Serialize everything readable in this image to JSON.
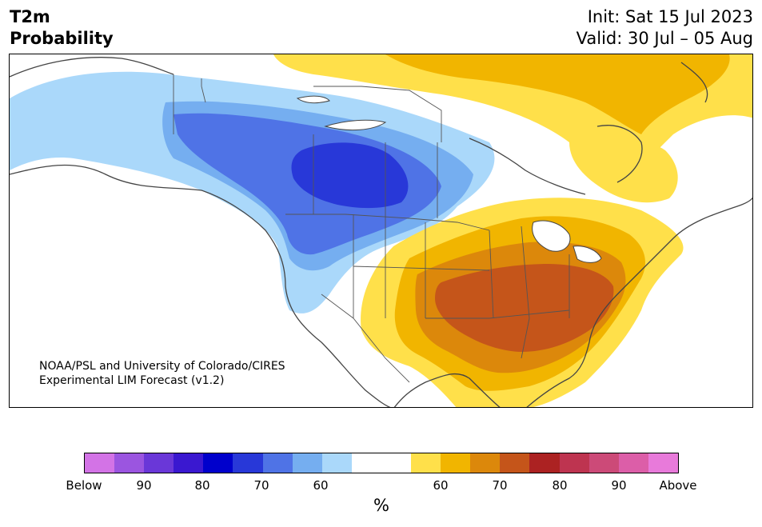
{
  "header": {
    "title_line1": "T2m",
    "title_line2": "Probability",
    "init": "Init: Sat 15 Jul 2023",
    "valid": "Valid: 30 Jul – 05 Aug"
  },
  "credit": {
    "line1": "NOAA/PSL and University of Colorado/CIRES",
    "line2": "Experimental LIM Forecast (v1.2)"
  },
  "colorbar": {
    "colors": [
      "#d373e6",
      "#9b55e0",
      "#6a37d8",
      "#3a18d0",
      "#0000cc",
      "#2838d8",
      "#4f73e6",
      "#75aef0",
      "#aad8fa",
      "#ffffff",
      "#ffffff",
      "#ffe04a",
      "#f1b500",
      "#dc880b",
      "#c5551a",
      "#ac2222",
      "#be3450",
      "#cc4a78",
      "#dc5ea8",
      "#e87ada"
    ],
    "tick_labels": [
      "Below",
      "90",
      "80",
      "70",
      "60",
      "60",
      "70",
      "80",
      "90",
      "Above"
    ],
    "unit": "%"
  },
  "map": {
    "region": "North America",
    "colors": {
      "above_60": "#ffe04a",
      "above_65": "#f1b500",
      "above_70": "#dc880b",
      "above_75": "#c5551a",
      "below_55": "#aad8fa",
      "below_60": "#75aef0",
      "below_65": "#4f73e6",
      "below_70": "#2838d8",
      "land_outline": "#444444"
    }
  }
}
